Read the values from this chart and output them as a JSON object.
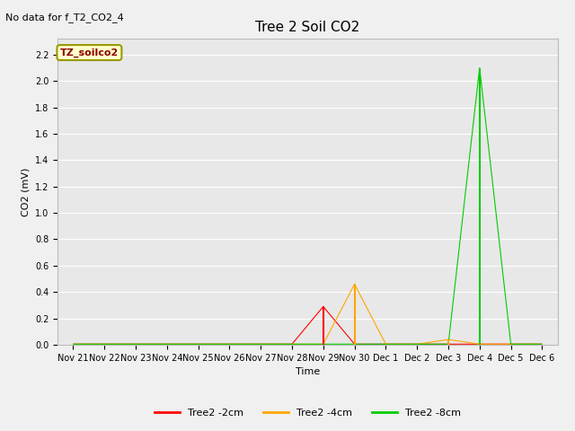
{
  "title": "Tree 2 Soil CO2",
  "no_data_text": "No data for f_T2_CO2_4",
  "ylabel": "CO2 (mV)",
  "xlabel": "Time",
  "annotation_label": "TZ_soilco2",
  "ylim": [
    0.0,
    2.32
  ],
  "yticks": [
    0.0,
    0.2,
    0.4,
    0.6,
    0.8,
    1.0,
    1.2,
    1.4,
    1.6,
    1.8,
    2.0,
    2.2
  ],
  "x_tick_positions": [
    0,
    1,
    2,
    3,
    4,
    5,
    6,
    7,
    8,
    9,
    10,
    11,
    12,
    13,
    14,
    15
  ],
  "x_tick_labels": [
    "Nov 21",
    "Nov 22",
    "Nov 23",
    "Nov 24",
    "Nov 25",
    "Nov 26",
    "Nov 27",
    "Nov 28",
    "Nov 29",
    "Nov 30",
    "Dec 1",
    "Dec 2",
    "Dec 3",
    "Dec 4",
    "Dec 5",
    "Dec 6"
  ],
  "xlim": [
    -0.5,
    15.5
  ],
  "figure_bg": "#f0f0f0",
  "plot_bg": "#e8e8e8",
  "grid_color": "#ffffff",
  "series": [
    {
      "label": "Tree2 -2cm",
      "color": "#ff0000",
      "baseline_color": "#00cc00",
      "points_x": [
        0,
        1,
        2,
        3,
        4,
        5,
        6,
        7,
        8,
        9,
        10,
        11,
        12,
        13,
        14,
        15
      ],
      "points_y": [
        0.005,
        0.005,
        0.005,
        0.005,
        0.005,
        0.005,
        0.005,
        0.005,
        0.29,
        0.005,
        0.005,
        0.005,
        0.005,
        0.005,
        0.005,
        0.005
      ]
    },
    {
      "label": "Tree2 -4cm",
      "color": "#ffa500",
      "points_x": [
        0,
        1,
        2,
        3,
        4,
        5,
        6,
        7,
        8,
        9,
        10,
        11,
        12,
        13,
        14,
        15
      ],
      "points_y": [
        0.005,
        0.005,
        0.005,
        0.005,
        0.005,
        0.005,
        0.005,
        0.005,
        0.005,
        0.46,
        0.005,
        0.005,
        0.04,
        0.005,
        0.005,
        0.005
      ]
    },
    {
      "label": "Tree2 -8cm",
      "color": "#00cc00",
      "points_x": [
        0,
        1,
        2,
        3,
        4,
        5,
        6,
        7,
        8,
        9,
        10,
        11,
        12,
        13,
        14,
        15
      ],
      "points_y": [
        0.005,
        0.005,
        0.005,
        0.005,
        0.005,
        0.005,
        0.005,
        0.005,
        0.005,
        0.005,
        0.005,
        0.005,
        0.005,
        2.1,
        0.005,
        0.005
      ]
    }
  ],
  "title_fontsize": 11,
  "label_fontsize": 8,
  "tick_fontsize": 7,
  "annot_fontsize": 8,
  "nodata_fontsize": 8,
  "legend_fontsize": 8
}
